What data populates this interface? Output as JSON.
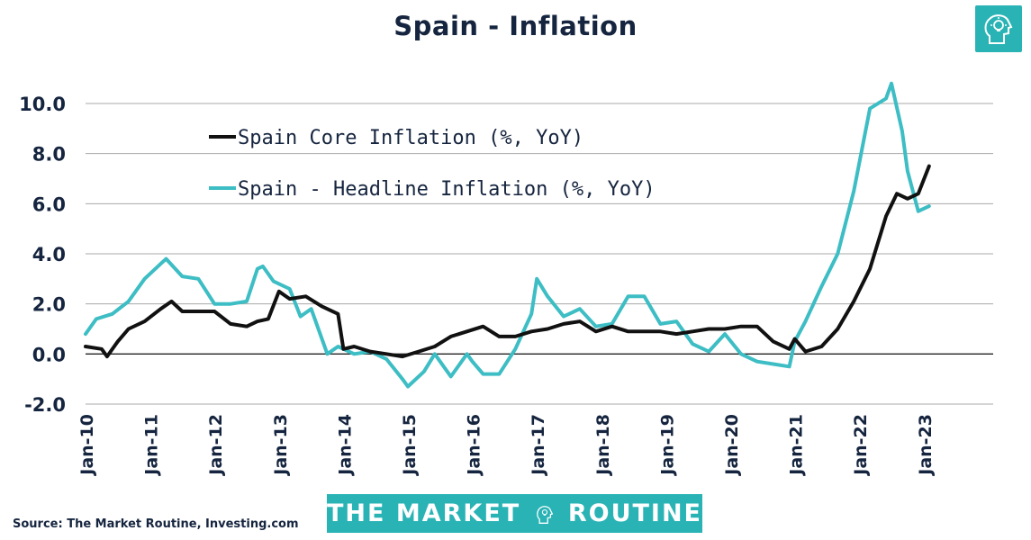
{
  "header": {
    "title": "Spain - Inflation"
  },
  "footer": {
    "source": "Source: The Market Routine, Investing.com"
  },
  "brand": {
    "left": "THE MARKET",
    "right": "ROUTINE",
    "logo_icon": "head-lightbulb-icon"
  },
  "colors": {
    "core": "#111111",
    "headline": "#3dbdc4",
    "title": "#16253f",
    "brand": "#2ab3b5",
    "grid": "#a8a8a8"
  },
  "chart_data": {
    "type": "line",
    "title": "Spain - Inflation",
    "xlabel": "",
    "ylabel": "",
    "ylim": [
      -2.0,
      11.0
    ],
    "yticks": [
      "-2.0",
      "0.0",
      "2.0",
      "4.0",
      "6.0",
      "8.0",
      "10.0"
    ],
    "xticks": [
      "Jan-10",
      "Jan-11",
      "Jan-12",
      "Jan-13",
      "Jan-14",
      "Jan-15",
      "Jan-16",
      "Jan-17",
      "Jan-18",
      "Jan-19",
      "Jan-20",
      "Jan-21",
      "Jan-22",
      "Jan-23"
    ],
    "grid": true,
    "legend": "top-left",
    "series": [
      {
        "name": "Spain Core Inflation (%, YoY)",
        "points": [
          [
            "2010-01",
            0.3
          ],
          [
            "2010-04",
            0.2
          ],
          [
            "2010-05",
            -0.1
          ],
          [
            "2010-07",
            0.5
          ],
          [
            "2010-09",
            1.0
          ],
          [
            "2010-12",
            1.3
          ],
          [
            "2011-03",
            1.8
          ],
          [
            "2011-05",
            2.1
          ],
          [
            "2011-07",
            1.7
          ],
          [
            "2011-10",
            1.7
          ],
          [
            "2012-01",
            1.7
          ],
          [
            "2012-04",
            1.2
          ],
          [
            "2012-07",
            1.1
          ],
          [
            "2012-09",
            1.3
          ],
          [
            "2012-11",
            1.4
          ],
          [
            "2013-01",
            2.5
          ],
          [
            "2013-03",
            2.2
          ],
          [
            "2013-06",
            2.3
          ],
          [
            "2013-09",
            1.9
          ],
          [
            "2013-12",
            1.6
          ],
          [
            "2014-01",
            0.2
          ],
          [
            "2014-03",
            0.3
          ],
          [
            "2014-06",
            0.1
          ],
          [
            "2014-09",
            0.0
          ],
          [
            "2014-12",
            -0.1
          ],
          [
            "2015-03",
            0.1
          ],
          [
            "2015-06",
            0.3
          ],
          [
            "2015-09",
            0.7
          ],
          [
            "2015-12",
            0.9
          ],
          [
            "2016-03",
            1.1
          ],
          [
            "2016-06",
            0.7
          ],
          [
            "2016-09",
            0.7
          ],
          [
            "2016-12",
            0.9
          ],
          [
            "2017-03",
            1.0
          ],
          [
            "2017-06",
            1.2
          ],
          [
            "2017-09",
            1.3
          ],
          [
            "2017-12",
            0.9
          ],
          [
            "2018-03",
            1.1
          ],
          [
            "2018-06",
            0.9
          ],
          [
            "2018-09",
            0.9
          ],
          [
            "2018-12",
            0.9
          ],
          [
            "2019-03",
            0.8
          ],
          [
            "2019-06",
            0.9
          ],
          [
            "2019-09",
            1.0
          ],
          [
            "2019-12",
            1.0
          ],
          [
            "2020-03",
            1.1
          ],
          [
            "2020-06",
            1.1
          ],
          [
            "2020-09",
            0.5
          ],
          [
            "2020-12",
            0.2
          ],
          [
            "2021-01",
            0.6
          ],
          [
            "2021-03",
            0.1
          ],
          [
            "2021-06",
            0.3
          ],
          [
            "2021-09",
            1.0
          ],
          [
            "2021-12",
            2.1
          ],
          [
            "2022-03",
            3.4
          ],
          [
            "2022-06",
            5.5
          ],
          [
            "2022-08",
            6.4
          ],
          [
            "2022-10",
            6.2
          ],
          [
            "2022-12",
            6.4
          ],
          [
            "2023-02",
            7.5
          ]
        ]
      },
      {
        "name": "Spain - Headline Inflation (%, YoY)",
        "points": [
          [
            "2010-01",
            0.8
          ],
          [
            "2010-03",
            1.4
          ],
          [
            "2010-06",
            1.6
          ],
          [
            "2010-09",
            2.1
          ],
          [
            "2010-12",
            3.0
          ],
          [
            "2011-03",
            3.6
          ],
          [
            "2011-04",
            3.8
          ],
          [
            "2011-07",
            3.1
          ],
          [
            "2011-10",
            3.0
          ],
          [
            "2012-01",
            2.0
          ],
          [
            "2012-04",
            2.0
          ],
          [
            "2012-07",
            2.1
          ],
          [
            "2012-09",
            3.4
          ],
          [
            "2012-10",
            3.5
          ],
          [
            "2012-12",
            2.9
          ],
          [
            "2013-03",
            2.6
          ],
          [
            "2013-05",
            1.5
          ],
          [
            "2013-07",
            1.8
          ],
          [
            "2013-10",
            0.0
          ],
          [
            "2013-12",
            0.3
          ],
          [
            "2014-03",
            0.0
          ],
          [
            "2014-06",
            0.1
          ],
          [
            "2014-09",
            -0.2
          ],
          [
            "2014-12",
            -1.0
          ],
          [
            "2015-01",
            -1.3
          ],
          [
            "2015-04",
            -0.7
          ],
          [
            "2015-06",
            0.0
          ],
          [
            "2015-09",
            -0.9
          ],
          [
            "2015-12",
            0.0
          ],
          [
            "2016-01",
            -0.3
          ],
          [
            "2016-03",
            -0.8
          ],
          [
            "2016-06",
            -0.8
          ],
          [
            "2016-09",
            0.2
          ],
          [
            "2016-12",
            1.6
          ],
          [
            "2017-01",
            3.0
          ],
          [
            "2017-03",
            2.3
          ],
          [
            "2017-06",
            1.5
          ],
          [
            "2017-09",
            1.8
          ],
          [
            "2017-12",
            1.1
          ],
          [
            "2018-03",
            1.2
          ],
          [
            "2018-06",
            2.3
          ],
          [
            "2018-09",
            2.3
          ],
          [
            "2018-12",
            1.2
          ],
          [
            "2019-03",
            1.3
          ],
          [
            "2019-06",
            0.4
          ],
          [
            "2019-09",
            0.1
          ],
          [
            "2019-12",
            0.8
          ],
          [
            "2020-03",
            0.0
          ],
          [
            "2020-06",
            -0.3
          ],
          [
            "2020-09",
            -0.4
          ],
          [
            "2020-12",
            -0.5
          ],
          [
            "2021-01",
            0.5
          ],
          [
            "2021-03",
            1.3
          ],
          [
            "2021-06",
            2.7
          ],
          [
            "2021-09",
            4.0
          ],
          [
            "2021-12",
            6.5
          ],
          [
            "2022-03",
            9.8
          ],
          [
            "2022-06",
            10.2
          ],
          [
            "2022-07",
            10.8
          ],
          [
            "2022-09",
            8.9
          ],
          [
            "2022-10",
            7.3
          ],
          [
            "2022-12",
            5.7
          ],
          [
            "2023-02",
            5.9
          ]
        ]
      }
    ]
  }
}
